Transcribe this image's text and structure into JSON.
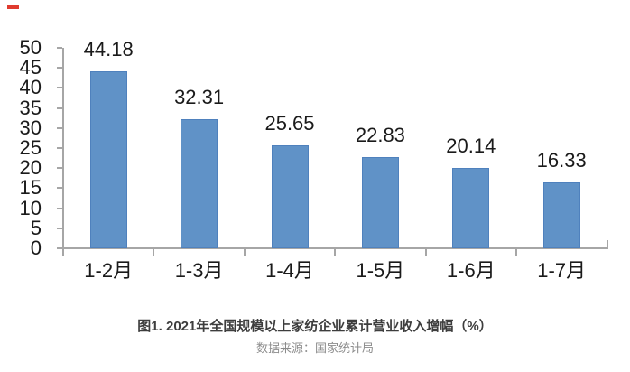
{
  "marks": {
    "red_dash_color": "#e03b2f"
  },
  "chart_data": {
    "type": "bar",
    "title": "图1. 2021年全国规模以上家纺企业累计营业收入增幅（%）",
    "source": "数据来源：国家统计局",
    "categories": [
      "1-2月",
      "1-3月",
      "1-4月",
      "1-5月",
      "1-6月",
      "1-7月"
    ],
    "values": [
      44.18,
      32.31,
      25.65,
      22.83,
      20.14,
      16.33
    ],
    "data_labels": [
      "44.18",
      "32.31",
      "25.65",
      "22.83",
      "20.14",
      "16.33"
    ],
    "xlabel": "",
    "ylabel": "",
    "ylim": [
      0,
      50
    ],
    "ytick_step": 5,
    "yticks": [
      50,
      45,
      40,
      35,
      30,
      25,
      20,
      15,
      10,
      5,
      0
    ],
    "grid": false,
    "legend": false,
    "colors": {
      "bar_fill": "#6092c7",
      "bar_border": "#4f81bd",
      "axis_line": "#a6a6a6",
      "tick_label": "#1a1a1a",
      "title": "#3d3d3d",
      "source": "#8c8c8c"
    }
  }
}
